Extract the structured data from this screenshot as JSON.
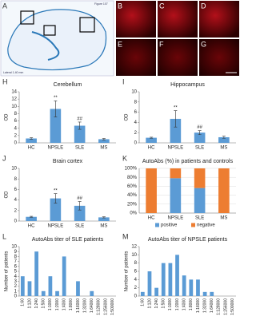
{
  "figure": {
    "panels": [
      "A",
      "B",
      "C",
      "D",
      "E",
      "F",
      "G"
    ],
    "atlas_texts": [
      "Figure 107",
      "Lateral 1.40 mm"
    ]
  },
  "chart_data": [
    {
      "type": "bar",
      "label": "H",
      "title": "Cerebellum",
      "ylabel": "OD",
      "categories": [
        "HC",
        "NPSLE",
        "SLE",
        "MS"
      ],
      "values": [
        1.2,
        9.3,
        4.7,
        1.0
      ],
      "errors": [
        0.2,
        2.2,
        1.0,
        0.2
      ],
      "significance": [
        null,
        "**",
        "##",
        null
      ],
      "color": "#5b9bd5",
      "ylim": [
        0,
        14
      ],
      "yticks": [
        0,
        2,
        4,
        6,
        8,
        10,
        12,
        14
      ]
    },
    {
      "type": "bar",
      "label": "I",
      "title": "Hippocampus",
      "ylabel": "OD",
      "categories": [
        "HC",
        "NPSLE",
        "SLE",
        "MS"
      ],
      "values": [
        1.0,
        4.7,
        2.0,
        1.1
      ],
      "errors": [
        0.1,
        1.6,
        0.4,
        0.2
      ],
      "significance": [
        null,
        "**",
        "##",
        null
      ],
      "color": "#5b9bd5",
      "ylim": [
        0,
        10
      ],
      "yticks": [
        0,
        2,
        4,
        6,
        8,
        10
      ]
    },
    {
      "type": "bar",
      "label": "J",
      "title": "Brain cortex",
      "ylabel": "OD",
      "categories": [
        "HC",
        "NPSLE",
        "SLE",
        "MS"
      ],
      "values": [
        0.8,
        4.3,
        2.9,
        0.7
      ],
      "errors": [
        0.1,
        0.9,
        0.8,
        0.1
      ],
      "significance": [
        null,
        "**",
        "##",
        null
      ],
      "color": "#5b9bd5",
      "ylim": [
        0,
        10
      ],
      "yticks": [
        0,
        2,
        4,
        6,
        8,
        10
      ]
    },
    {
      "type": "stacked",
      "label": "K",
      "title": "AutoAbs (%) in patients and controls",
      "categories": [
        "HC",
        "NPSLE",
        "SLE",
        "MS"
      ],
      "series": [
        {
          "name": "positive",
          "color": "#5b9bd5",
          "values": [
            0,
            78,
            56,
            0
          ]
        },
        {
          "name": "negative",
          "color": "#ed7d31",
          "values": [
            100,
            22,
            44,
            100
          ]
        }
      ],
      "ylim": [
        0,
        100
      ],
      "yticks": [
        {
          "value": 0,
          "label": "0%"
        },
        {
          "value": 20,
          "label": "20%"
        },
        {
          "value": 40,
          "label": "40%"
        },
        {
          "value": 60,
          "label": "60%"
        },
        {
          "value": 80,
          "label": "80%"
        },
        {
          "value": 100,
          "label": "100%"
        }
      ]
    },
    {
      "type": "bar",
      "label": "L",
      "title": "AutoAbs titer of SLE patients",
      "ylabel": "Number of patients",
      "categories": [
        "1:60",
        "1:120",
        "1:240",
        "1:500",
        "1:1000",
        "1:2000",
        "1:4000",
        "1:8000",
        "1:16000",
        "1:32000",
        "1:64000",
        "1:128000",
        "1:256000",
        "1:500000"
      ],
      "values": [
        4,
        3,
        9,
        1,
        4,
        1,
        8,
        0,
        3,
        0,
        1,
        0,
        0,
        0
      ],
      "color": "#5b9bd5",
      "ylim": [
        0,
        10
      ],
      "yticks": [
        0,
        1,
        2,
        3,
        4,
        5,
        6,
        7,
        8,
        9,
        10
      ]
    },
    {
      "type": "bar",
      "label": "M",
      "title": "AutoAbs titer of NPSLE patients",
      "ylabel": "Number of patients",
      "categories": [
        "1:60",
        "1:120",
        "1:240",
        "1:500",
        "1:1000",
        "1:2000",
        "1:4000",
        "1:8000",
        "1:16000",
        "1:32000",
        "1:64000",
        "1:128000",
        "1:256000",
        "1:500000"
      ],
      "values": [
        1,
        6,
        2,
        8,
        8,
        10,
        5,
        4,
        4,
        1,
        1,
        0,
        0,
        0
      ],
      "color": "#5b9bd5",
      "ylim": [
        0,
        12
      ],
      "yticks": [
        0,
        2,
        4,
        6,
        8,
        10,
        12
      ]
    }
  ]
}
